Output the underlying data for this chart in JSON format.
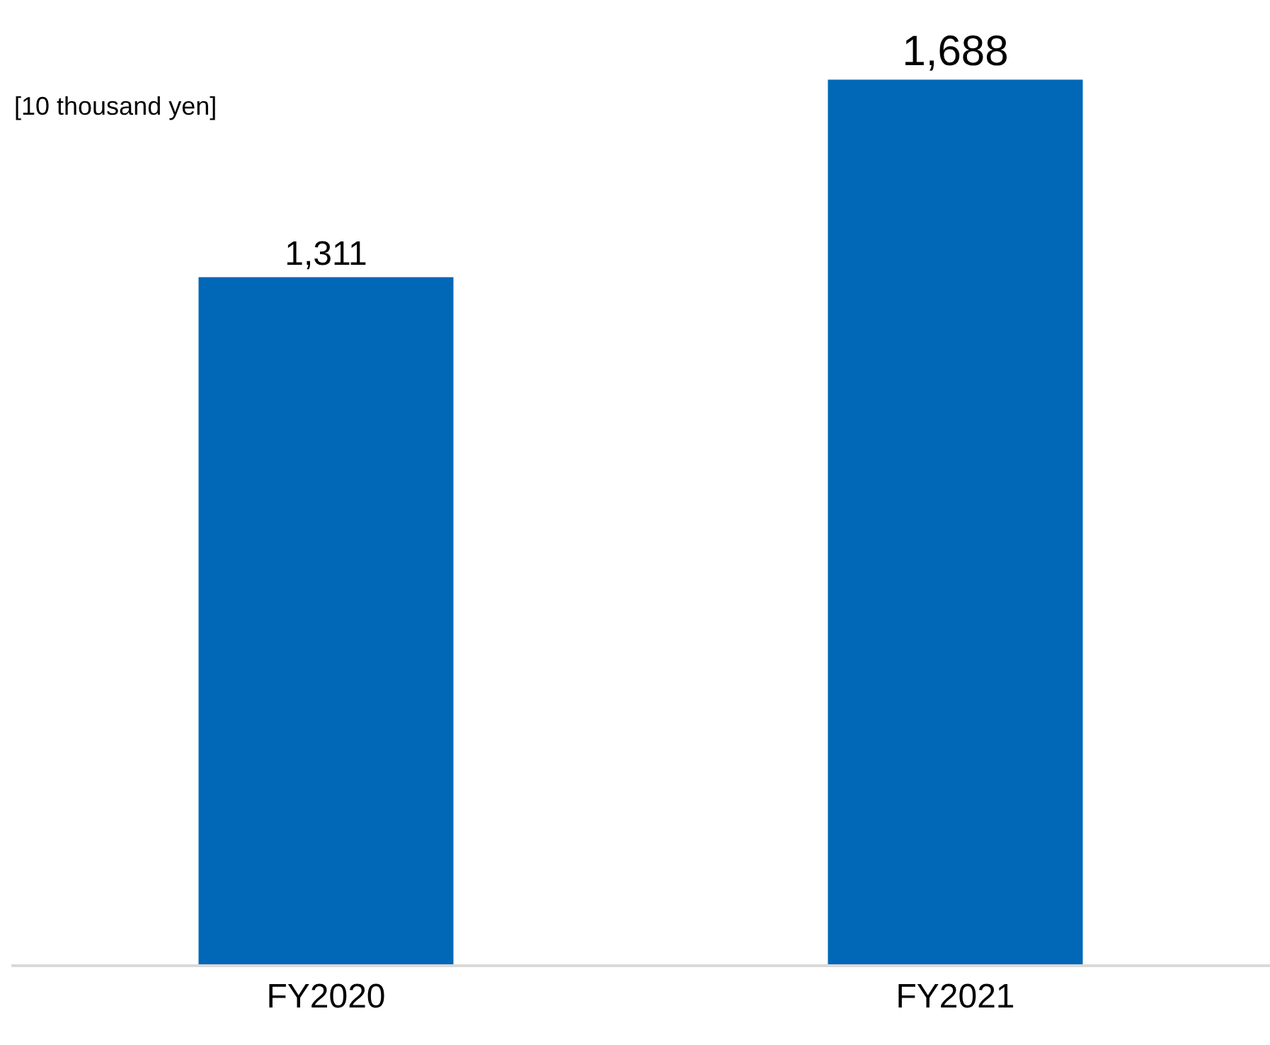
{
  "chart_data": {
    "type": "bar",
    "ylabel": "[10 thousand yen]",
    "categories": [
      "FY2020",
      "FY2021"
    ],
    "values": [
      1311,
      1688
    ],
    "value_labels": [
      "1,311",
      "1,688"
    ],
    "color": "#0068b7"
  }
}
